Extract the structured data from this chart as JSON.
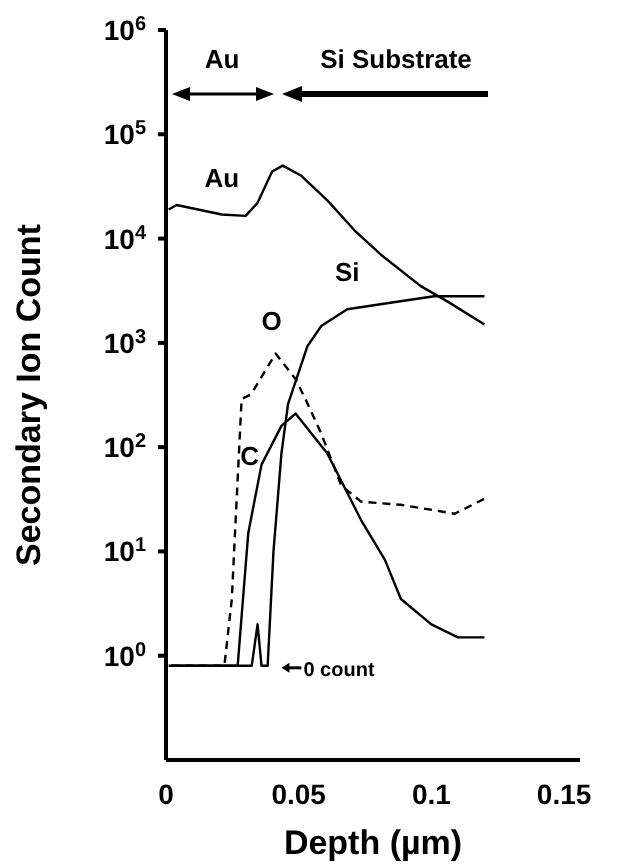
{
  "chart_data": {
    "type": "line",
    "xlabel": "Depth (µm)",
    "ylabel": "Secondary Ion Count",
    "log": "y",
    "xlim": [
      0,
      0.156
    ],
    "xticks": [
      0,
      0.05,
      0.1,
      0.15
    ],
    "ylim": [
      0.1,
      1000000
    ],
    "yticks": [
      {
        "value": 1,
        "label": "10$^{0}$"
      },
      {
        "value": 10,
        "label": "10$^{1}$"
      },
      {
        "value": 100,
        "label": "10$^{2}$"
      },
      {
        "value": 1000,
        "label": "10$^{3}$"
      },
      {
        "value": 10000,
        "label": "10$^{4}$"
      },
      {
        "value": 100000,
        "label": "10$^{5}$"
      },
      {
        "value": 1000000,
        "label": "10$^{6}$"
      }
    ],
    "marker": "none",
    "series": [
      {
        "name": "Au",
        "color": "#000000",
        "line_style": "solid",
        "x": [
          0.001,
          0.004,
          0.021,
          0.03,
          0.0345,
          0.04,
          0.044,
          0.051,
          0.061,
          0.071,
          0.081,
          0.096,
          0.106,
          0.12
        ],
        "values": [
          19000,
          21000,
          17000,
          16500,
          22000,
          44000,
          50000,
          40000,
          23000,
          12000,
          7000,
          3500,
          2500,
          1500
        ]
      },
      {
        "name": "Si",
        "color": "#000000",
        "line_style": "solid",
        "x": [
          0.001,
          0.0323,
          0.0345,
          0.036,
          0.0383,
          0.0405,
          0.0435,
          0.046,
          0.0533,
          0.0585,
          0.0683,
          0.0833,
          0.101,
          0.12
        ],
        "values": [
          0.8,
          0.8,
          2,
          0.8,
          0.8,
          10,
          87,
          260,
          930,
          1450,
          2100,
          2400,
          2800,
          2800
        ]
      },
      {
        "name": "O",
        "color": "#000000",
        "line_style": "dashed",
        "x": [
          0.002,
          0.022,
          0.0248,
          0.026,
          0.0285,
          0.032,
          0.0413,
          0.0488,
          0.0525,
          0.0585,
          0.066,
          0.0735,
          0.0885,
          0.1088,
          0.12
        ],
        "values": [
          0.8,
          0.8,
          3.5,
          15,
          290,
          320,
          790,
          450,
          290,
          135,
          43,
          30,
          28,
          23,
          32
        ]
      },
      {
        "name": "C",
        "color": "#000000",
        "line_style": "solid",
        "x": [
          0.002,
          0.027,
          0.031,
          0.036,
          0.0435,
          0.0488,
          0.0608,
          0.0735,
          0.0825,
          0.0885,
          0.1,
          0.11,
          0.12
        ],
        "values": [
          0.8,
          0.8,
          15,
          68,
          160,
          210,
          87,
          20,
          8.3,
          3.5,
          2,
          1.5,
          1.5
        ]
      }
    ],
    "annotations": [
      "Au",
      "Si Substrate",
      {
        "text": "0 count",
        "x": 0.0435,
        "y": 0.8
      }
    ]
  }
}
